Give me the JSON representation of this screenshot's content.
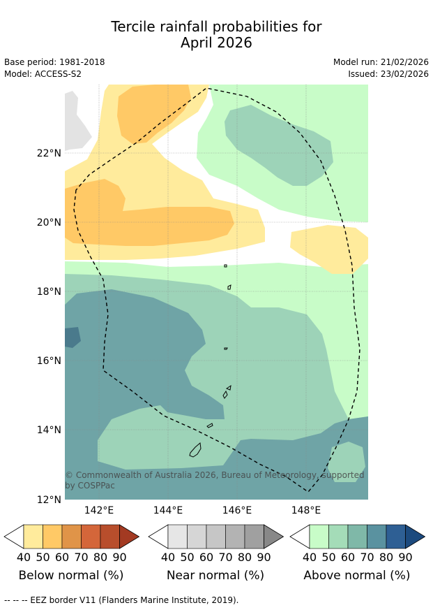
{
  "title_line1": "Tercile rainfall probabilities for",
  "title_line2": "April 2026",
  "meta": {
    "base_period": "Base period: 1981-2018",
    "model": "Model: ACCESS-S2",
    "model_run": "Model run: 21/02/2026",
    "issued": "Issued: 23/02/2026"
  },
  "map": {
    "lat_labels": [
      "22°N",
      "20°N",
      "18°N",
      "16°N",
      "14°N",
      "12°N"
    ],
    "lon_labels": [
      "142°E",
      "144°E",
      "146°E",
      "148°E"
    ],
    "copyright": "© Commonwealth of Australia 2026, Bureau of Meteorology, supported by COSPPac",
    "colors": {
      "above_40": "#c8fcc8",
      "above_50": "#9dd3b8",
      "above_60": "#6fa4a6",
      "above_70": "#4a7a8c",
      "below_40": "#ffeb9c",
      "below_50": "#ffc966",
      "grey": "#e3e3e3"
    }
  },
  "legends": [
    {
      "name": "Below normal (%)",
      "ticks": [
        "40",
        "50",
        "60",
        "70",
        "80",
        "90"
      ],
      "colors": [
        "#ffeb9c",
        "#ffc966",
        "#e09448",
        "#d4663a",
        "#b84e2c",
        "#a33a22"
      ]
    },
    {
      "name": "Near normal (%)",
      "ticks": [
        "40",
        "50",
        "60",
        "70",
        "80",
        "90"
      ],
      "colors": [
        "#e6e6e6",
        "#d6d6d6",
        "#c6c6c6",
        "#b3b3b3",
        "#a0a0a0",
        "#888888"
      ]
    },
    {
      "name": "Above normal (%)",
      "ticks": [
        "40",
        "50",
        "60",
        "70",
        "80",
        "90"
      ],
      "colors": [
        "#c8fcc8",
        "#a4dcb8",
        "#7fb8a8",
        "#5a92a0",
        "#2e5f94",
        "#1c4a7e"
      ]
    }
  ],
  "footer": "--  --  -- EEZ border V11 (Flanders Marine Institute, 2019)."
}
